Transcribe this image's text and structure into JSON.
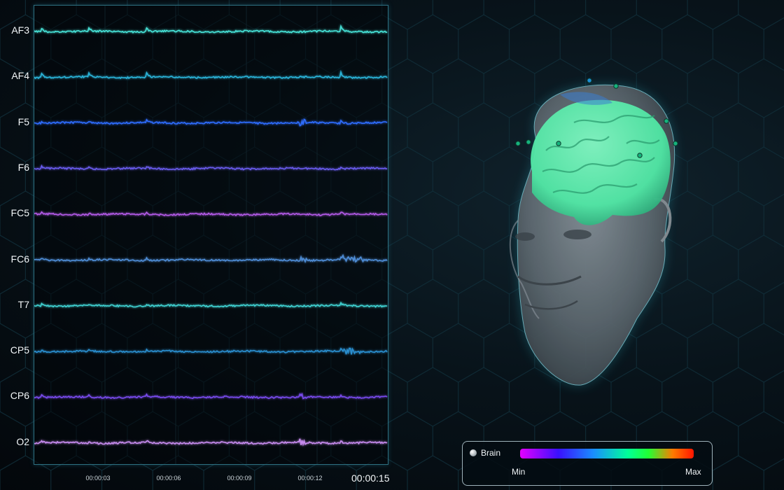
{
  "eeg": {
    "channels": [
      {
        "label": "AF3",
        "color": "#46e3d8"
      },
      {
        "label": "AF4",
        "color": "#2bb6dc"
      },
      {
        "label": "F5",
        "color": "#2f6dff"
      },
      {
        "label": "F6",
        "color": "#6a5cf0"
      },
      {
        "label": "FC5",
        "color": "#b45ae8"
      },
      {
        "label": "FC6",
        "color": "#4f8ed8"
      },
      {
        "label": "T7",
        "color": "#3fd3d3"
      },
      {
        "label": "CP5",
        "color": "#2a8fd0"
      },
      {
        "label": "CP6",
        "color": "#7a4cf0"
      },
      {
        "label": "O2",
        "color": "#c88cf0"
      }
    ],
    "time_ticks": [
      "00:00:03",
      "00:00:06",
      "00:00:09",
      "00:00:12"
    ],
    "current_time": "00:00:15"
  },
  "head": {
    "brain_color": "#4fe6a4",
    "electrode_color": "#16b37d"
  },
  "legend": {
    "item": "Brain",
    "min_label": "Min",
    "max_label": "Max"
  }
}
